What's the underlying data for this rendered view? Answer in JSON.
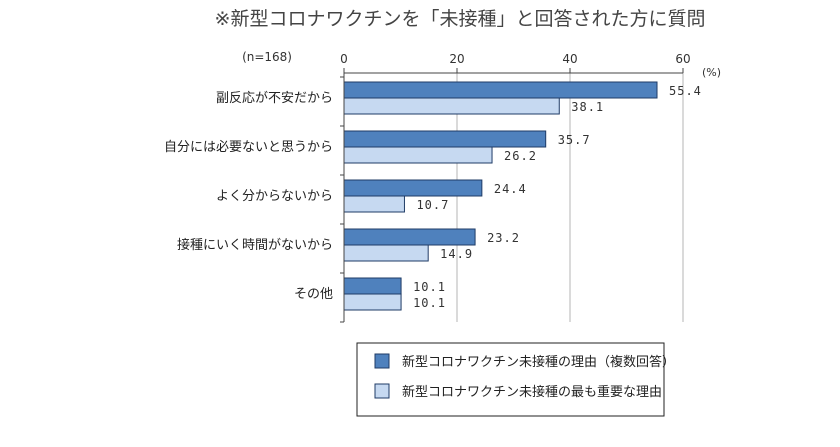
{
  "chart_data": {
    "type": "bar",
    "orientation": "horizontal",
    "title": "※新型コロナワクチンを「未接種」と回答された方に質問",
    "sample_size": "(n=168)",
    "unit": "(%)",
    "xlim": [
      0,
      60
    ],
    "ticks": [
      "0",
      "20",
      "40",
      "60"
    ],
    "grid": true,
    "legend_position": "bottom-right",
    "categories": [
      "副反応が不安だから",
      "自分には必要ないと思うから",
      "よく分からないから",
      "接種にいく時間がないから",
      "その他"
    ],
    "series": [
      {
        "name": "新型コロナワクチン未接種の理由（複数回答）",
        "color": "#4f81bd",
        "values": [
          55.4,
          35.7,
          24.4,
          23.2,
          10.1
        ],
        "labels": [
          "55.4",
          "35.7",
          "24.4",
          "23.2",
          "10.1"
        ]
      },
      {
        "name": "新型コロナワクチン未接種の最も重要な理由",
        "color": "#c6d9f1",
        "values": [
          38.1,
          26.2,
          10.7,
          14.9,
          10.1
        ],
        "labels": [
          "38.1",
          "26.2",
          "10.7",
          "14.9",
          "10.1"
        ]
      }
    ]
  }
}
